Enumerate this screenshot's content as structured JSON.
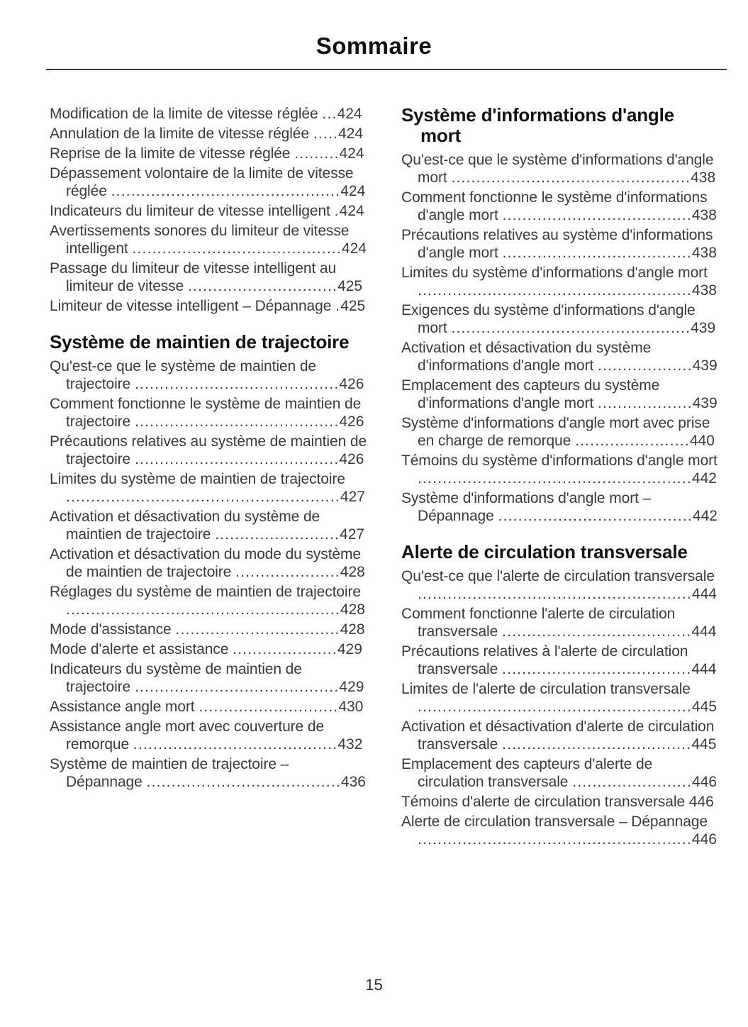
{
  "page": {
    "title": "Sommaire",
    "number": "15"
  },
  "columns": {
    "left": {
      "sections": [
        {
          "heading": null,
          "entries": [
            {
              "title": "Modification de la limite de vitesse réglée",
              "page": "424"
            },
            {
              "title": "Annulation de la limite de vitesse réglée",
              "page": "424"
            },
            {
              "title": "Reprise de la limite de vitesse réglée",
              "page": "424"
            },
            {
              "title": "Dépassement volontaire de la limite de vitesse réglée",
              "page": "424"
            },
            {
              "title": "Indicateurs du limiteur de vitesse intelligent",
              "page": "424"
            },
            {
              "title": "Avertissements sonores du limiteur de vitesse intelligent",
              "page": "424"
            },
            {
              "title": "Passage du limiteur de vitesse intelligent au limiteur de vitesse",
              "page": "425"
            },
            {
              "title": "Limiteur de vitesse intelligent – Dépannage",
              "page": "425"
            }
          ]
        },
        {
          "heading": "Système de maintien de trajectoire",
          "entries": [
            {
              "title": "Qu'est-ce que le système de maintien de trajectoire",
              "page": "426"
            },
            {
              "title": "Comment fonctionne le système de maintien de trajectoire",
              "page": "426"
            },
            {
              "title": "Précautions relatives au système de maintien de trajectoire",
              "page": "426"
            },
            {
              "title": "Limites du système de maintien de trajectoire",
              "page": "427"
            },
            {
              "title": "Activation et désactivation du système de maintien de trajectoire",
              "page": "427"
            },
            {
              "title": "Activation et désactivation du mode du système de maintien de trajectoire",
              "page": "428"
            },
            {
              "title": "Réglages du système de maintien de trajectoire",
              "page": "428"
            },
            {
              "title": "Mode d'assistance",
              "page": "428"
            },
            {
              "title": "Mode d'alerte et assistance",
              "page": "429"
            },
            {
              "title": "Indicateurs du système de maintien de trajectoire",
              "page": "429"
            },
            {
              "title": "Assistance angle mort",
              "page": "430"
            },
            {
              "title": "Assistance angle mort avec couverture de remorque",
              "page": "432"
            },
            {
              "title": "Système de maintien de trajectoire – Dépannage",
              "page": "436"
            }
          ]
        }
      ]
    },
    "right": {
      "sections": [
        {
          "heading": "Système d'informations d'angle mort",
          "entries": [
            {
              "title": "Qu'est-ce que le système d'informations d'angle mort",
              "page": "438"
            },
            {
              "title": "Comment fonctionne le système d'informations d'angle mort",
              "page": "438"
            },
            {
              "title": "Précautions relatives au système d'informations d'angle mort",
              "page": "438"
            },
            {
              "title": "Limites du système d'informations d'angle mort",
              "page": "438"
            },
            {
              "title": "Exigences du système d'informations d'angle mort",
              "page": "439"
            },
            {
              "title": "Activation et désactivation du système d'informations d'angle mort",
              "page": "439"
            },
            {
              "title": "Emplacement des capteurs du système d'informations d'angle mort",
              "page": "439"
            },
            {
              "title": "Système d'informations d'angle mort avec prise en charge de remorque",
              "page": "440"
            },
            {
              "title": "Témoins du système d'informations d'angle mort",
              "page": "442"
            },
            {
              "title": "Système d'informations d'angle mort – Dépannage",
              "page": "442"
            }
          ]
        },
        {
          "heading": "Alerte de circulation transversale",
          "entries": [
            {
              "title": "Qu'est-ce que l'alerte de circulation transversale",
              "page": "444"
            },
            {
              "title": "Comment fonctionne l'alerte de circulation transversale",
              "page": "444"
            },
            {
              "title": "Précautions relatives à l'alerte de circulation transversale",
              "page": "444"
            },
            {
              "title": "Limites de l'alerte de circulation transversale",
              "page": "445"
            },
            {
              "title": "Activation et désactivation d'alerte de circulation transversale",
              "page": "445"
            },
            {
              "title": "Emplacement des capteurs d'alerte de circulation transversale",
              "page": "446"
            },
            {
              "title": "Témoins d'alerte de circulation transversale",
              "page": "446"
            },
            {
              "title": "Alerte de circulation transversale – Dépannage",
              "page": "446"
            }
          ]
        }
      ]
    }
  }
}
